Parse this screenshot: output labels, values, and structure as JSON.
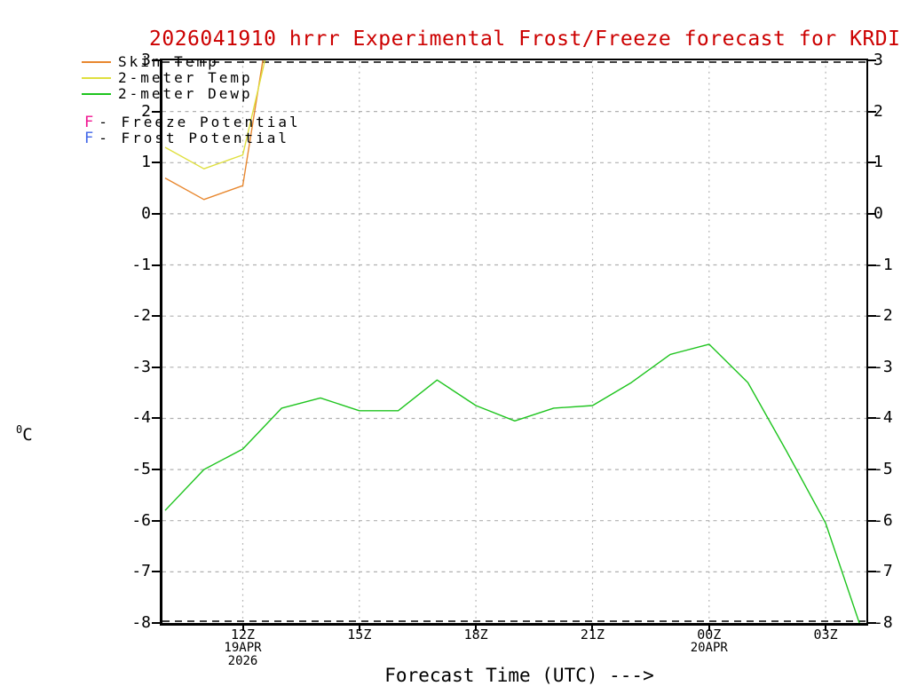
{
  "title": "2026041910 hrrr Experimental Frost/Freeze forecast for KRDI",
  "title_color": "#cc0000",
  "axes": {
    "ylabel_sup": "0",
    "ylabel_main": "C",
    "xlabel": "Forecast Time (UTC) --->"
  },
  "legend": {
    "series": [
      {
        "label": "Skin Temp",
        "color": "#e8872e"
      },
      {
        "label": "2-meter Temp",
        "color": "#dfdf3e"
      },
      {
        "label": "2-meter Dewp",
        "color": "#1ec41e"
      }
    ],
    "flags": [
      {
        "letter": "F",
        "color": "#f01490",
        "label": "- Freeze Potential"
      },
      {
        "letter": "F",
        "color": "#4166e8",
        "label": "- Frost Potential"
      }
    ]
  },
  "chart_data": {
    "type": "line",
    "title": "2026041910 hrrr Experimental Frost/Freeze forecast for KRDI",
    "xlabel": "Forecast Time (UTC) --->",
    "ylabel": "degrees C",
    "x_unit": "forecast hour (UTC), 19-20 APR 2026, 10Z through 04Z",
    "ylim": [
      -8,
      3
    ],
    "xlim_hours": [
      9.95,
      28.1
    ],
    "grid": "dashed gray at every 1 degC and every 3 h",
    "legend_position": "top-left, overlapping plot",
    "yticks": [
      3,
      2,
      1,
      0,
      -1,
      -2,
      -3,
      -4,
      -5,
      -6,
      -7,
      -8
    ],
    "xticks": [
      {
        "hour": 12,
        "label": "12Z",
        "sub": [
          "19APR",
          "2026"
        ]
      },
      {
        "hour": 15,
        "label": "15Z",
        "sub": []
      },
      {
        "hour": 18,
        "label": "18Z",
        "sub": []
      },
      {
        "hour": 21,
        "label": "21Z",
        "sub": []
      },
      {
        "hour": 24,
        "label": "00Z",
        "sub": [
          "20APR"
        ]
      },
      {
        "hour": 27,
        "label": "03Z",
        "sub": []
      }
    ],
    "series": [
      {
        "name": "Skin Temp",
        "color": "#e8872e",
        "x": [
          10,
          11,
          12,
          13
        ],
        "values": [
          0.7,
          0.28,
          0.55,
          5.3
        ],
        "note": "rises off scale above 3C shortly after 12Z"
      },
      {
        "name": "2-meter Temp",
        "color": "#dfdf3e",
        "x": [
          10,
          11,
          12,
          13
        ],
        "values": [
          1.3,
          0.88,
          1.15,
          4.4
        ],
        "note": "rises off scale above 3C shortly after 12Z"
      },
      {
        "name": "2-meter Dewp",
        "color": "#1ec41e",
        "x": [
          10,
          11,
          12,
          13,
          14,
          15,
          16,
          17,
          18,
          19,
          20,
          21,
          22,
          23,
          24,
          25,
          26,
          27,
          28
        ],
        "values": [
          -5.8,
          -5.0,
          -4.6,
          -3.8,
          -3.6,
          -3.85,
          -3.85,
          -3.25,
          -3.75,
          -4.05,
          -3.8,
          -3.75,
          -3.3,
          -2.75,
          -2.55,
          -3.3,
          -4.65,
          -6.05,
          -8.3
        ],
        "note": "drops off scale below -8C just before 04Z"
      }
    ],
    "freeze_potential_markers": [],
    "frost_potential_markers": []
  }
}
